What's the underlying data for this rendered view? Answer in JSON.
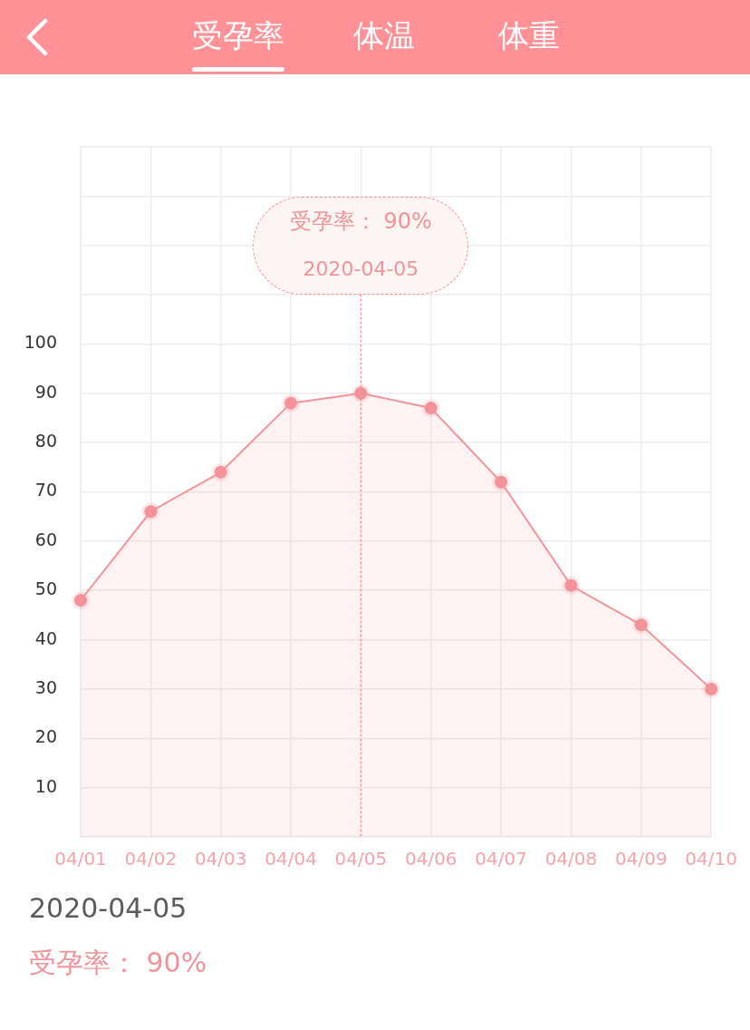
{
  "chart_data": {
    "type": "area",
    "title": "受孕率",
    "categories": [
      "04/01",
      "04/02",
      "04/03",
      "04/04",
      "04/05",
      "04/06",
      "04/07",
      "04/08",
      "04/09",
      "04/10"
    ],
    "values": [
      48,
      66,
      74,
      88,
      90,
      87,
      72,
      51,
      43,
      30
    ],
    "color": "#f4939a",
    "ylim": [
      0,
      140
    ],
    "yticks": [
      {
        "value": 0,
        "label": null
      },
      10,
      20,
      30,
      40,
      50,
      60,
      70,
      80,
      90,
      100,
      {
        "value": 110,
        "label": null
      },
      {
        "value": 120,
        "label": null
      },
      {
        "value": 130,
        "label": null
      },
      {
        "value": 140,
        "label": null
      }
    ],
    "grid": true,
    "marker": "circle",
    "line_style": "solid",
    "ref_lines": [
      {
        "axis": "x",
        "value": "04/05",
        "line_style": "dotted",
        "color": "#f4939a"
      }
    ],
    "annotations": [
      "体温",
      "体重",
      "受孕率： 90%",
      "2020-04-05",
      "2020-04-05",
      "受孕率： 90%"
    ]
  }
}
